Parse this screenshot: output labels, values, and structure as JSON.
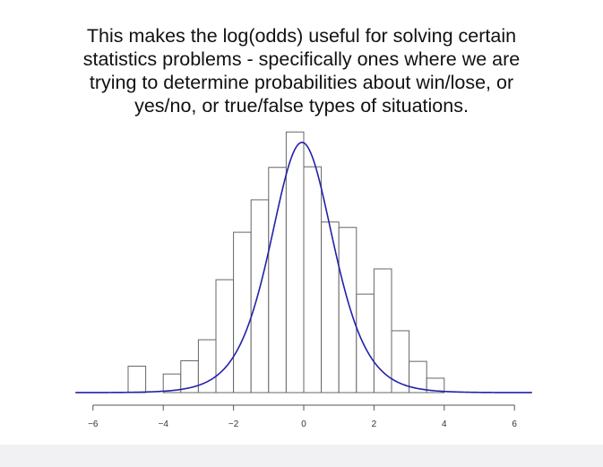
{
  "slide": {
    "text_lines": [
      "This makes the log(odds) useful for solving certain",
      "statistics problems - specifically ones where we are",
      "trying to determine probabilities about win/lose, or",
      "yes/no, or true/false types of situations."
    ]
  },
  "chart_data": {
    "type": "bar",
    "title": "",
    "xlabel": "",
    "ylabel": "",
    "xlim": [
      -6,
      6
    ],
    "xticks": [
      -6,
      -4,
      -2,
      0,
      2,
      4,
      6
    ],
    "bins": [
      {
        "x0": -5.0,
        "x1": -4.5,
        "value": 0.044
      },
      {
        "x0": -4.5,
        "x1": -4.0,
        "value": 0.0
      },
      {
        "x0": -4.0,
        "x1": -3.5,
        "value": 0.031
      },
      {
        "x0": -3.5,
        "x1": -3.0,
        "value": 0.053
      },
      {
        "x0": -3.0,
        "x1": -2.5,
        "value": 0.088
      },
      {
        "x0": -2.5,
        "x1": -2.0,
        "value": 0.188
      },
      {
        "x0": -2.0,
        "x1": -1.5,
        "value": 0.267
      },
      {
        "x0": -1.5,
        "x1": -1.0,
        "value": 0.321
      },
      {
        "x0": -1.0,
        "x1": -0.5,
        "value": 0.375
      },
      {
        "x0": -0.5,
        "x1": 0.0,
        "value": 0.434
      },
      {
        "x0": 0.0,
        "x1": 0.5,
        "value": 0.376
      },
      {
        "x0": 0.5,
        "x1": 1.0,
        "value": 0.284
      },
      {
        "x0": 1.0,
        "x1": 1.5,
        "value": 0.275
      },
      {
        "x0": 1.5,
        "x1": 2.0,
        "value": 0.164
      },
      {
        "x0": 2.0,
        "x1": 2.5,
        "value": 0.206
      },
      {
        "x0": 2.5,
        "x1": 3.0,
        "value": 0.103
      },
      {
        "x0": 3.0,
        "x1": 3.5,
        "value": 0.052
      },
      {
        "x0": 3.5,
        "x1": 4.0,
        "value": 0.024
      }
    ],
    "curve": {
      "type": "logistic-density",
      "location": -0.05,
      "scale": 0.6,
      "color": "#2222aa"
    },
    "bar_fill": "#ffffff",
    "bar_stroke": "#666666"
  }
}
